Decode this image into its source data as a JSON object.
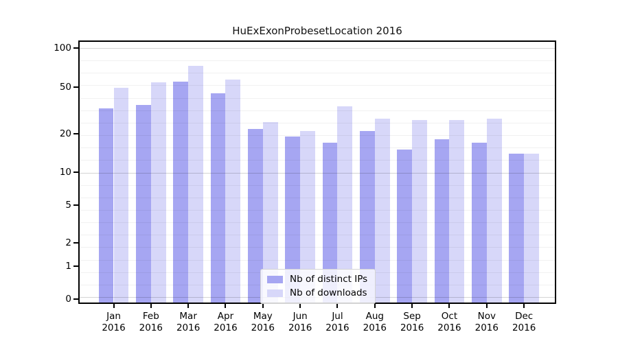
{
  "title": "HuExExonProbesetLocation 2016",
  "chart_data": {
    "type": "bar",
    "title": "HuExExonProbesetLocation 2016",
    "categories": [
      "Jan",
      "Feb",
      "Mar",
      "Apr",
      "May",
      "Jun",
      "Jul",
      "Aug",
      "Sep",
      "Oct",
      "Nov",
      "Dec"
    ],
    "year_label": "2016",
    "series": [
      {
        "name": "Nb of distinct IPs",
        "color": "#a6a6f2",
        "values": [
          33,
          35,
          55,
          44,
          22,
          19,
          17,
          21,
          15,
          18,
          17,
          14
        ]
      },
      {
        "name": "Nb of downloads",
        "color": "#d7d7f9",
        "values": [
          49,
          54,
          73,
          57,
          25,
          21,
          34,
          27,
          26,
          26,
          27,
          14
        ]
      }
    ],
    "yticks": [
      0,
      1,
      2,
      5,
      10,
      20,
      50,
      100
    ],
    "ylim": [
      0,
      100
    ],
    "yscale": "compressed-log-like",
    "grid": "horizontal-stripes",
    "legend_position": "bottom-center"
  }
}
